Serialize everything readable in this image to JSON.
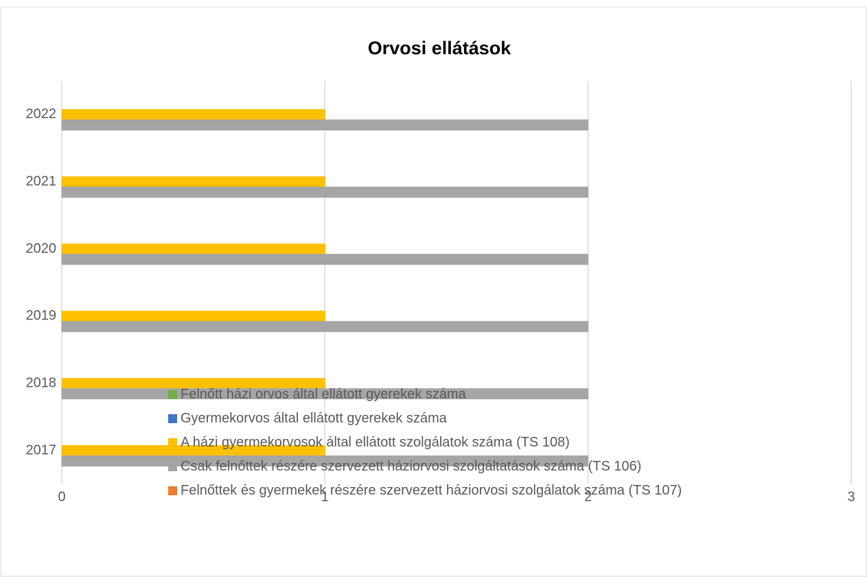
{
  "chart_data": {
    "type": "bar",
    "orientation": "horizontal",
    "title": "Orvosi ellátások",
    "categories": [
      "2017",
      "2018",
      "2019",
      "2020",
      "2021",
      "2022"
    ],
    "series": [
      {
        "name": "Felnőtt házi orvos által ellátott gyerekek száma",
        "color": "#70ad47",
        "values": [
          0,
          0,
          0,
          0,
          0,
          0
        ]
      },
      {
        "name": "Gyermekorvos által ellátott gyerekek száma",
        "color": "#4472c4",
        "values": [
          0,
          0,
          0,
          0,
          0,
          0
        ]
      },
      {
        "name": "A házi gyermekorvosok által ellátott szolgálatok száma (TS 108)",
        "color": "#ffc000",
        "values": [
          1,
          1,
          1,
          1,
          1,
          1
        ]
      },
      {
        "name": "Csak felnőttek részére szervezett háziorvosi szolgáltatások száma (TS 106)",
        "color": "#a5a5a5",
        "values": [
          2,
          2,
          2,
          2,
          2,
          2
        ]
      },
      {
        "name": "Felnőttek és gyermekek részére szervezett háziorvosi szolgálatok száma (TS 107)",
        "color": "#ed7d31",
        "values": [
          0,
          0,
          0,
          0,
          0,
          0
        ]
      }
    ],
    "xlim": [
      0,
      3
    ],
    "xticks": [
      0,
      1,
      2,
      3
    ],
    "grid": true
  }
}
